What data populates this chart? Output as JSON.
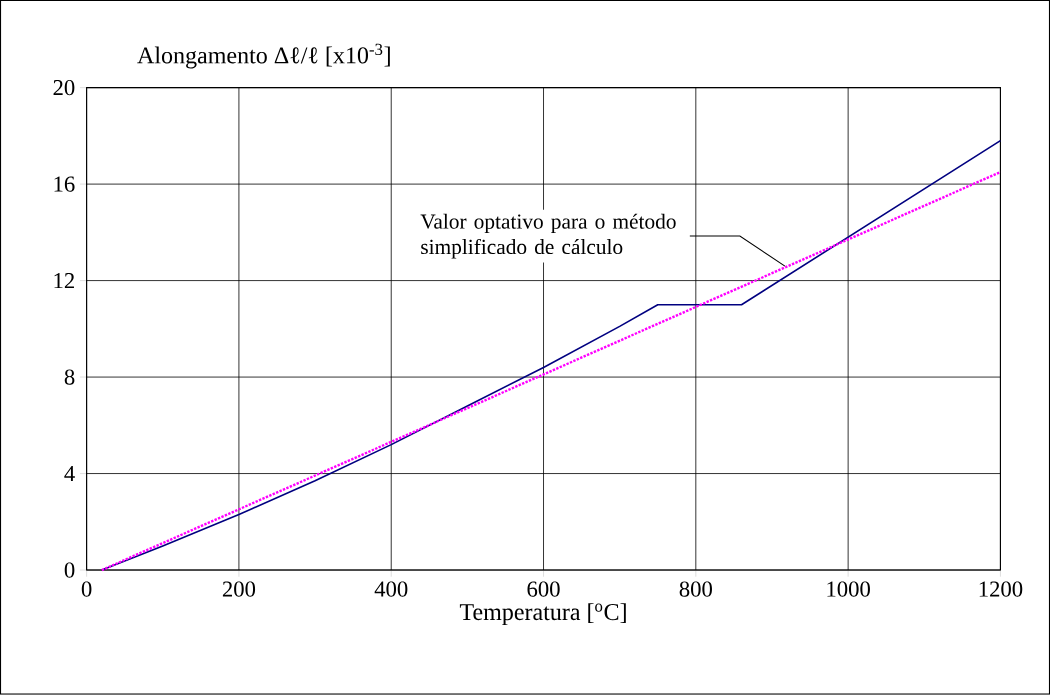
{
  "chart_data": {
    "type": "line",
    "xlabel": "Temperatura [$^{o}$C]",
    "ylabel": "Alongamento Δℓ/ℓ  [x10$^{-3}$]",
    "xlim": [
      0,
      1200
    ],
    "ylim": [
      0,
      20
    ],
    "xticks": [
      0,
      200,
      400,
      600,
      800,
      1000,
      1200
    ],
    "yticks": [
      0,
      4,
      8,
      12,
      16,
      20
    ],
    "grid": true,
    "marker": "none",
    "series": [
      {
        "color": "#000080",
        "line_style": "solid",
        "x": [
          20,
          100,
          200,
          300,
          400,
          500,
          600,
          700,
          750,
          860,
          1200
        ],
        "values": [
          0,
          1.0,
          2.3,
          3.7,
          5.2,
          6.8,
          8.4,
          10.1,
          11.0,
          11.0,
          17.8
        ]
      },
      {
        "color": "#ff00ff",
        "line_style": "dotted",
        "x": [
          20,
          1200
        ],
        "values": [
          0,
          16.5
        ]
      }
    ],
    "annotations": [
      {
        "text": "Valor optativo para o método simplificado de cálculo",
        "x": 917,
        "y": 12.6
      }
    ]
  }
}
